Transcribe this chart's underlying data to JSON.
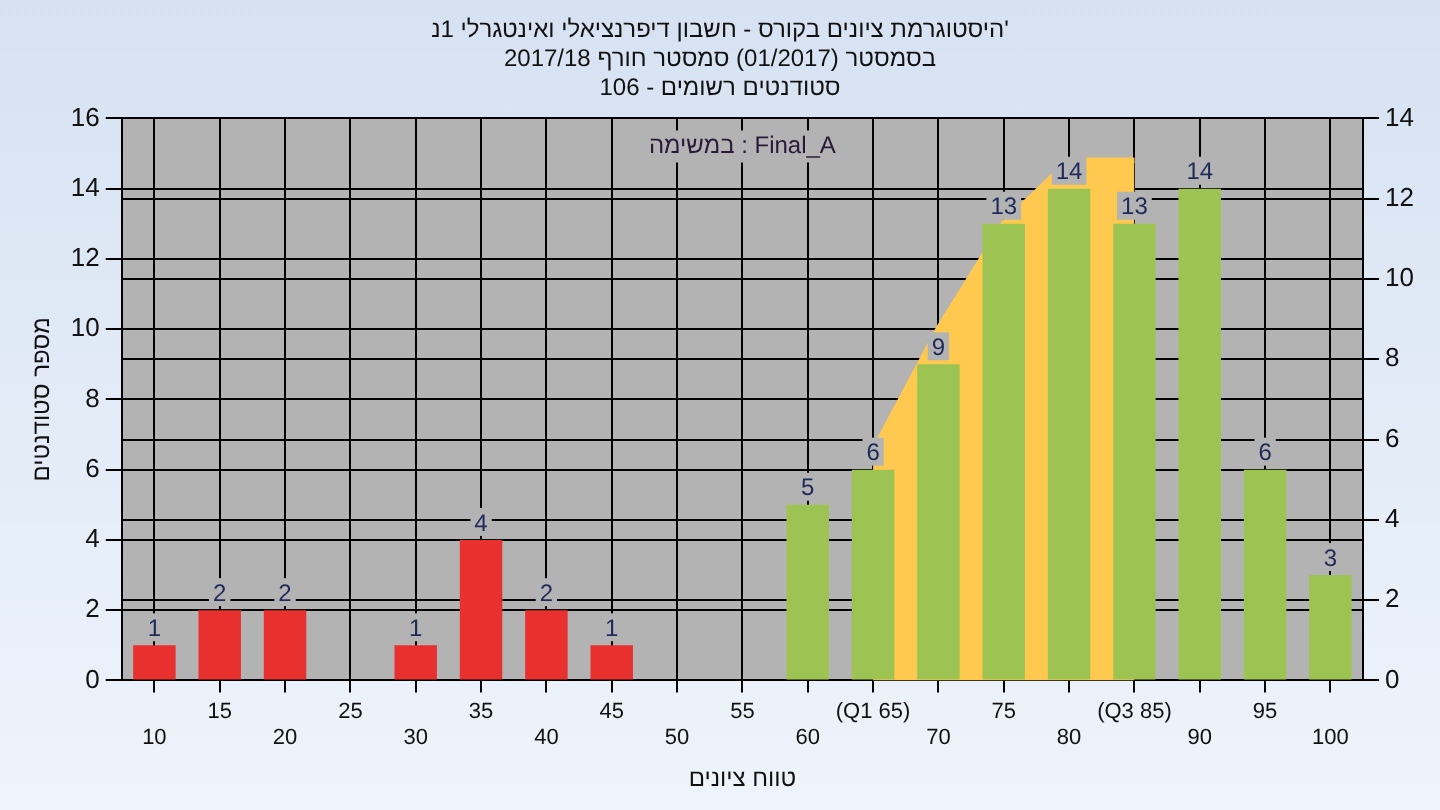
{
  "chart_data": {
    "type": "bar",
    "title": "היסטוגרמת ציונים בקורס - חשבון דיפרנציאלי ואינטגרלי 1נ'",
    "subtitle": "בסמסטר (01/2017) סמסטר חורף 2017/18\nסטודנטים רשומים - 106",
    "xlabel": "טווח ציונים",
    "ylabel": "מספר סטודנטים",
    "annotations": [
      "במשימה : Final_A"
    ],
    "categories": [
      "10",
      "15",
      "20",
      "25",
      "30",
      "35",
      "40",
      "45",
      "50",
      "55",
      "60",
      "(Q1 65)",
      "70",
      "75",
      "80",
      "(Q3 85)",
      "90",
      "95",
      "100"
    ],
    "series": [
      {
        "type": "bar",
        "values": [
          1,
          2,
          2,
          0,
          1,
          4,
          2,
          1,
          0,
          0,
          5,
          6,
          9,
          13,
          14,
          13,
          14,
          6,
          3
        ],
        "value_labels": [
          "1",
          "2",
          "2",
          null,
          "1",
          "4",
          "2",
          "1",
          null,
          null,
          "5",
          "6",
          "9",
          "13",
          "14",
          "13",
          "14",
          "6",
          "3"
        ],
        "colors": [
          "#e8302f",
          "#e8302f",
          "#e8302f",
          "#e8302f",
          "#e8302f",
          "#e8302f",
          "#e8302f",
          "#e8302f",
          "#e8302f",
          "#e8302f",
          "#9dc452",
          "#9dc452",
          "#9dc452",
          "#9dc452",
          "#9dc452",
          "#9dc452",
          "#9dc452",
          "#9dc452",
          "#9dc452"
        ]
      },
      {
        "type": "area",
        "color": "#ffc94f",
        "values": [
          null,
          null,
          null,
          null,
          null,
          null,
          null,
          null,
          null,
          null,
          null,
          6.5,
          10,
          13,
          14.8,
          14.8,
          null,
          null,
          null
        ]
      }
    ],
    "ylim": [
      0,
      16
    ],
    "yticks": [
      0,
      2,
      4,
      6,
      8,
      10,
      12,
      14,
      16
    ],
    "y2lim": [
      0,
      14
    ],
    "y2ticks": [
      0,
      2,
      4,
      6,
      8,
      10,
      12,
      14
    ],
    "grid": true,
    "legend": false
  }
}
